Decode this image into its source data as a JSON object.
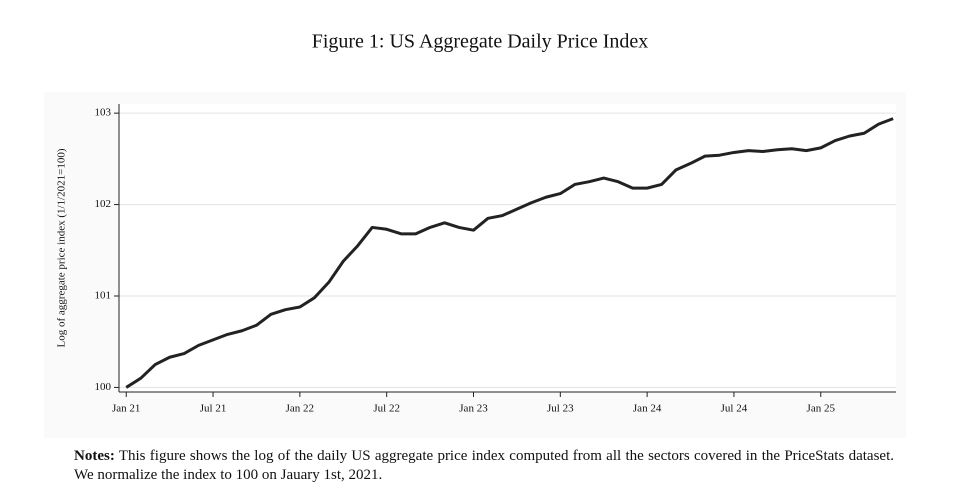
{
  "chart_data": {
    "type": "line",
    "title": "Figure 1: US Aggregate Daily Price Index",
    "y_label": "Log of aggregate price index (1/1/2021=100)",
    "x": [
      0,
      1,
      2,
      3,
      4,
      5,
      6,
      7,
      8,
      9,
      10,
      11,
      12,
      13,
      14,
      15,
      16,
      17,
      18,
      19,
      20,
      21,
      22,
      23,
      24,
      25,
      26,
      27,
      28,
      29,
      30,
      31,
      32,
      33,
      34,
      35,
      36,
      37,
      38,
      39,
      40,
      41,
      42,
      43,
      44,
      45,
      46,
      47,
      48,
      49,
      50,
      51,
      52,
      53
    ],
    "series": [
      {
        "color": "#222222",
        "values": [
          100.0,
          100.1,
          100.25,
          100.33,
          100.37,
          100.46,
          100.52,
          100.58,
          100.62,
          100.68,
          100.8,
          100.85,
          100.88,
          100.98,
          101.15,
          101.38,
          101.55,
          101.75,
          101.73,
          101.68,
          101.68,
          101.75,
          101.8,
          101.75,
          101.72,
          101.85,
          101.88,
          101.95,
          102.02,
          102.08,
          102.12,
          102.22,
          102.25,
          102.29,
          102.25,
          102.18,
          102.18,
          102.22,
          102.38,
          102.45,
          102.53,
          102.54,
          102.57,
          102.59,
          102.58,
          102.6,
          102.61,
          102.59,
          102.62,
          102.7,
          102.75,
          102.78,
          102.88,
          102.94
        ]
      }
    ],
    "xlim": [
      -0.5,
      53.2
    ],
    "xticks": [
      {
        "value": 0,
        "label": "Jan 21"
      },
      {
        "value": 6,
        "label": "Jul 21"
      },
      {
        "value": 12,
        "label": "Jan 22"
      },
      {
        "value": 18,
        "label": "Jul 22"
      },
      {
        "value": 24,
        "label": "Jan 23"
      },
      {
        "value": 30,
        "label": "Jul 23"
      },
      {
        "value": 36,
        "label": "Jan 24"
      },
      {
        "value": 42,
        "label": "Jul 24"
      },
      {
        "value": 48,
        "label": "Jan 25"
      }
    ],
    "ylim": [
      99.95,
      103.1
    ],
    "yticks": [
      100,
      101,
      102,
      103
    ],
    "grid": true
  },
  "notes": {
    "label": "Notes:",
    "text": "This figure shows the log of the daily US aggregate price index computed from all the sectors covered in the PriceStats dataset. We normalize the index to 100 on Jauary 1st, 2021."
  }
}
